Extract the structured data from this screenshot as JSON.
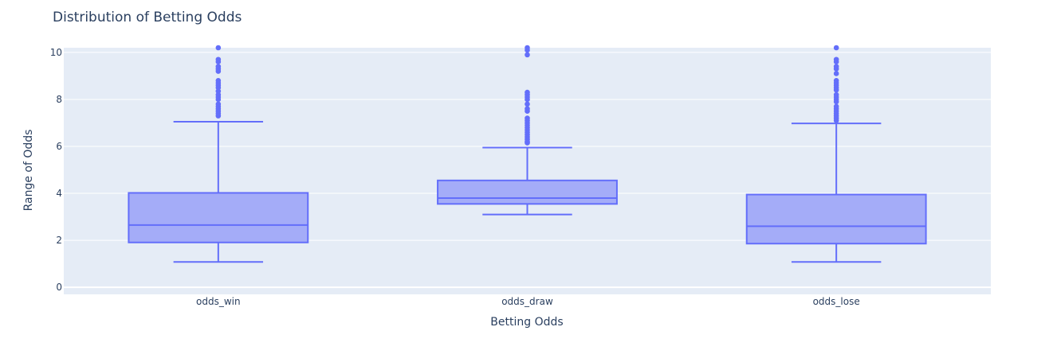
{
  "chart_data": {
    "type": "box",
    "title": "Distribution of Betting Odds",
    "xlabel": "Betting Odds",
    "ylabel": "Range of Odds",
    "ylim": [
      -0.3,
      10.2
    ],
    "yticks": [
      0,
      2,
      4,
      6,
      8,
      10
    ],
    "grid": true,
    "colors": {
      "plot_bg": "#e5ecf6",
      "box_line": "#636efa",
      "box_fill": "#a4acf8",
      "grid": "#ffffff",
      "text": "#2a3f5f"
    },
    "categories": [
      "odds_win",
      "odds_draw",
      "odds_lose"
    ],
    "boxes": [
      {
        "category": "odds_win",
        "lower_whisker": 1.08,
        "q1": 1.91,
        "median": 2.65,
        "q3": 4.02,
        "upper_whisker": 7.05,
        "outliers": [
          7.3,
          7.4,
          7.5,
          7.6,
          7.7,
          7.8,
          8.0,
          8.1,
          8.2,
          8.35,
          8.5,
          8.6,
          8.7,
          8.8,
          9.2,
          9.3,
          9.4,
          9.6,
          9.7,
          10.2
        ]
      },
      {
        "category": "odds_draw",
        "lower_whisker": 3.1,
        "q1": 3.55,
        "median": 3.8,
        "q3": 4.55,
        "upper_whisker": 5.95,
        "outliers": [
          6.15,
          6.2,
          6.3,
          6.4,
          6.5,
          6.6,
          6.7,
          6.8,
          6.9,
          7.0,
          7.1,
          7.2,
          7.5,
          7.6,
          7.8,
          8.0,
          8.1,
          8.2,
          8.3,
          9.9,
          10.1,
          10.2
        ]
      },
      {
        "category": "odds_lose",
        "lower_whisker": 1.08,
        "q1": 1.86,
        "median": 2.6,
        "q3": 3.95,
        "upper_whisker": 6.98,
        "outliers": [
          7.1,
          7.2,
          7.3,
          7.4,
          7.5,
          7.6,
          7.7,
          7.9,
          8.0,
          8.1,
          8.2,
          8.4,
          8.5,
          8.6,
          8.7,
          8.8,
          9.1,
          9.3,
          9.4,
          9.6,
          9.7,
          10.2
        ]
      }
    ]
  }
}
